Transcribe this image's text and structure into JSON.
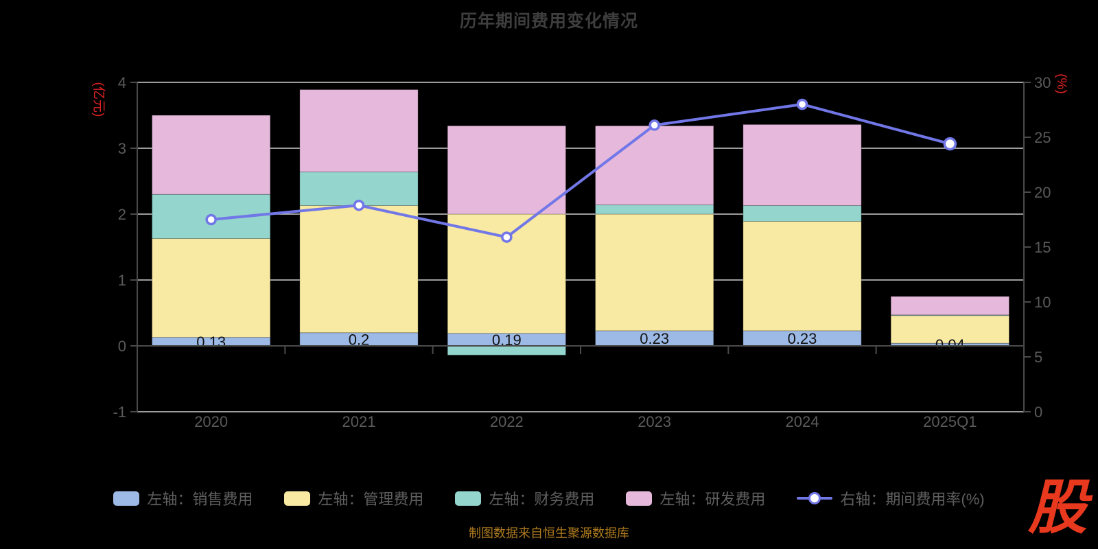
{
  "title": "历年期间费用变化情况",
  "footer": "制图数据来自恒生聚源数据库",
  "logo": "股",
  "colors": {
    "background": "#000000",
    "grid": "#cfcfcf",
    "axis": "#4a4a4a",
    "tick_label": "#5a5a5a",
    "title": "#3e3e3e",
    "legend_text": "#5f5f5f",
    "axis_name": "#e02222",
    "data_label": "#111111",
    "footer": "#ad7a1e",
    "logo": "#e8391e",
    "symbol_fill": "#ffffff"
  },
  "chart_data": {
    "type": "bar+line (stacked bars left axis, line right axis)",
    "title": "历年期间费用变化情况",
    "categories": [
      "2020",
      "2021",
      "2022",
      "2023",
      "2024",
      "2025Q1"
    ],
    "left_axis": {
      "name": "(亿元)",
      "ylim": [
        -1,
        4
      ],
      "ticks": [
        4,
        3,
        2,
        1,
        0,
        -1
      ]
    },
    "right_axis": {
      "name": "(%)",
      "ylim": [
        0,
        30
      ],
      "ticks": [
        30,
        25,
        20,
        15,
        10,
        5,
        0
      ]
    },
    "grid": true,
    "legend_position": "bottom",
    "series": [
      {
        "name": "左轴：销售费用",
        "type": "bar",
        "stack": "left",
        "color": "#9dbae6",
        "values": [
          0.13,
          0.2,
          0.19,
          0.23,
          0.23,
          0.04
        ],
        "labels": [
          "0.13",
          "0.2",
          "0.19",
          "0.23",
          "0.23",
          "0.04"
        ]
      },
      {
        "name": "左轴：管理费用",
        "type": "bar",
        "stack": "left",
        "color": "#f8e9a3",
        "values": [
          1.5,
          1.93,
          1.81,
          1.77,
          1.66,
          0.42
        ]
      },
      {
        "name": "左轴：财务费用",
        "type": "bar",
        "stack": "left",
        "color": "#94d5cd",
        "values": [
          0.67,
          0.51,
          -0.14,
          0.14,
          0.24,
          0.01
        ]
      },
      {
        "name": "左轴：研发费用",
        "type": "bar",
        "stack": "left",
        "color": "#e6b9dc",
        "values": [
          1.2,
          1.25,
          1.34,
          1.2,
          1.23,
          0.28
        ]
      },
      {
        "name": "右轴：期间费用率(%)",
        "type": "line",
        "axis": "right",
        "color": "#7277e8",
        "values": [
          17.5,
          18.8,
          15.9,
          26.1,
          28.0,
          24.4
        ]
      }
    ]
  }
}
